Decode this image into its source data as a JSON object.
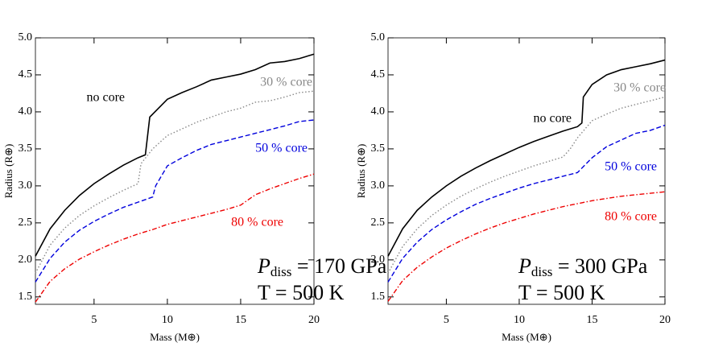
{
  "chart_data": [
    {
      "type": "line",
      "xlabel": "Mass (M⊕)",
      "ylabel": "Radius (R⊕)",
      "annotation": {
        "symbol": "P",
        "subscript": "diss",
        "rest": " = 170 GPa",
        "line2": "T = 500 K"
      },
      "xlim": [
        1,
        20
      ],
      "ylim": [
        1.4,
        5.0
      ],
      "xticks": [
        5,
        10,
        15,
        20
      ],
      "yticks": [
        1.5,
        {
          "value": 2,
          "label": "2.0"
        },
        2.5,
        {
          "value": 3,
          "label": "3.0"
        },
        3.5,
        {
          "value": 4,
          "label": "4.0"
        },
        4.5,
        {
          "value": 5,
          "label": "5.0"
        }
      ],
      "series": [
        {
          "name": "no core",
          "color": "#000000",
          "style": "solid",
          "x": [
            1,
            2,
            3,
            4,
            5,
            6,
            7,
            8,
            8.5,
            8.8,
            10,
            11,
            12,
            13,
            14,
            15,
            16,
            17,
            18,
            19,
            20
          ],
          "values": [
            2.05,
            2.42,
            2.67,
            2.87,
            3.03,
            3.16,
            3.28,
            3.38,
            3.42,
            3.93,
            4.17,
            4.26,
            4.34,
            4.43,
            4.47,
            4.51,
            4.57,
            4.66,
            4.68,
            4.72,
            4.78
          ]
        },
        {
          "name": "30 % core",
          "color": "#888888",
          "style": "dotted",
          "x": [
            1,
            2,
            3,
            4,
            5,
            6,
            7,
            8,
            8.2,
            9,
            10,
            11,
            12,
            13,
            14,
            15,
            16,
            17,
            18,
            19,
            20
          ],
          "values": [
            1.82,
            2.2,
            2.43,
            2.6,
            2.73,
            2.84,
            2.94,
            3.03,
            3.3,
            3.5,
            3.68,
            3.77,
            3.86,
            3.93,
            4.0,
            4.05,
            4.13,
            4.15,
            4.2,
            4.26,
            4.28
          ]
        },
        {
          "name": "50 % core",
          "color": "#0000dd",
          "style": "dashed",
          "x": [
            1,
            2,
            3,
            4,
            5,
            6,
            7,
            8,
            9,
            9.2,
            10,
            11,
            12,
            13,
            14,
            15,
            16,
            17,
            18,
            19,
            20
          ],
          "values": [
            1.7,
            2.02,
            2.24,
            2.4,
            2.52,
            2.62,
            2.71,
            2.78,
            2.85,
            3.0,
            3.27,
            3.38,
            3.48,
            3.56,
            3.61,
            3.66,
            3.71,
            3.76,
            3.81,
            3.87,
            3.89
          ]
        },
        {
          "name": "80 % core",
          "color": "#ee0000",
          "style": "dashdot",
          "x": [
            1,
            2,
            3,
            4,
            5,
            6,
            7,
            8,
            9,
            10,
            11,
            12,
            13,
            14,
            15,
            16,
            17,
            18,
            19,
            20
          ],
          "values": [
            1.43,
            1.71,
            1.88,
            2.01,
            2.11,
            2.2,
            2.28,
            2.35,
            2.41,
            2.48,
            2.53,
            2.58,
            2.63,
            2.68,
            2.74,
            2.88,
            2.96,
            3.03,
            3.1,
            3.16
          ]
        }
      ]
    },
    {
      "type": "line",
      "xlabel": "Mass (M⊕)",
      "ylabel": "Radius (R⊕)",
      "annotation": {
        "symbol": "P",
        "subscript": "diss",
        "rest": " = 300 GPa",
        "line2": "T = 500 K"
      },
      "xlim": [
        1,
        20
      ],
      "ylim": [
        1.4,
        5.0
      ],
      "xticks": [
        5,
        10,
        15,
        20
      ],
      "yticks": [
        1.5,
        {
          "value": 2,
          "label": "2.0"
        },
        2.5,
        {
          "value": 3,
          "label": "3.0"
        },
        3.5,
        {
          "value": 4,
          "label": "4.0"
        },
        4.5,
        {
          "value": 5,
          "label": "5.0"
        }
      ],
      "series": [
        {
          "name": "no core",
          "color": "#000000",
          "style": "solid",
          "x": [
            1,
            2,
            3,
            4,
            5,
            6,
            7,
            8,
            9,
            10,
            11,
            12,
            13,
            14,
            14.3,
            14.4,
            15,
            16,
            17,
            18,
            19,
            20
          ],
          "values": [
            2.05,
            2.42,
            2.67,
            2.85,
            3.0,
            3.13,
            3.24,
            3.34,
            3.43,
            3.52,
            3.6,
            3.67,
            3.74,
            3.8,
            3.85,
            4.2,
            4.37,
            4.5,
            4.57,
            4.61,
            4.65,
            4.7
          ]
        },
        {
          "name": "30 % core",
          "color": "#888888",
          "style": "dotted",
          "x": [
            1,
            2,
            3,
            4,
            5,
            6,
            7,
            8,
            9,
            10,
            11,
            12,
            13,
            13.5,
            14,
            15,
            16,
            17,
            18,
            19,
            20
          ],
          "values": [
            1.82,
            2.18,
            2.42,
            2.6,
            2.74,
            2.86,
            2.96,
            3.05,
            3.13,
            3.2,
            3.27,
            3.33,
            3.39,
            3.5,
            3.65,
            3.88,
            3.97,
            4.05,
            4.1,
            4.15,
            4.2
          ]
        },
        {
          "name": "50 % core",
          "color": "#0000dd",
          "style": "dashed",
          "x": [
            1,
            2,
            3,
            4,
            5,
            6,
            7,
            8,
            9,
            10,
            11,
            12,
            13,
            14,
            15,
            16,
            17,
            18,
            19,
            20
          ],
          "values": [
            1.7,
            2.02,
            2.24,
            2.41,
            2.54,
            2.65,
            2.75,
            2.83,
            2.9,
            2.97,
            3.03,
            3.08,
            3.13,
            3.18,
            3.38,
            3.53,
            3.62,
            3.71,
            3.75,
            3.82
          ]
        },
        {
          "name": "80 % core",
          "color": "#ee0000",
          "style": "dashdot",
          "x": [
            1,
            2,
            3,
            4,
            5,
            6,
            7,
            8,
            9,
            10,
            11,
            12,
            13,
            14,
            15,
            16,
            17,
            18,
            19,
            20
          ],
          "values": [
            1.44,
            1.72,
            1.9,
            2.04,
            2.16,
            2.26,
            2.35,
            2.43,
            2.5,
            2.56,
            2.62,
            2.67,
            2.72,
            2.76,
            2.8,
            2.83,
            2.86,
            2.88,
            2.9,
            2.92
          ]
        }
      ]
    }
  ]
}
